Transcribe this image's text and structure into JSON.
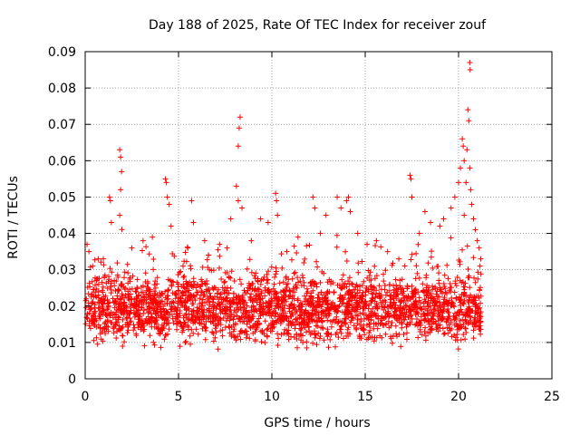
{
  "chart_data": {
    "type": "scatter",
    "title": "Day 188 of 2025, Rate Of TEC Index for receiver zouf",
    "xlabel": "GPS time / hours",
    "ylabel": "ROTI / TECUs",
    "xlim": [
      0,
      25
    ],
    "ylim": [
      0,
      0.09
    ],
    "x_ticks": [
      0,
      5,
      10,
      15,
      20,
      25
    ],
    "x_tick_labels": [
      "0",
      "5",
      "10",
      "15",
      "20",
      "25"
    ],
    "y_ticks": [
      0,
      0.01,
      0.02,
      0.03,
      0.04,
      0.05,
      0.06,
      0.07,
      0.08,
      0.09
    ],
    "y_tick_labels": [
      "0",
      "0.01",
      "0.02",
      "0.03",
      "0.04",
      "0.05",
      "0.06",
      "0.07",
      "0.08",
      "0.09"
    ],
    "grid": true,
    "marker": "+",
    "marker_color": "#ff0000",
    "series": [
      {
        "name": "ROTI",
        "x_range": [
          0,
          21.2
        ],
        "band_baseline_range": [
          0.007,
          0.028
        ],
        "band_median": 0.017,
        "points": [
          [
            0.1,
            0.037
          ],
          [
            0.2,
            0.035
          ],
          [
            0.4,
            0.031
          ],
          [
            0.7,
            0.033
          ],
          [
            1.3,
            0.05
          ],
          [
            1.35,
            0.049
          ],
          [
            1.4,
            0.043
          ],
          [
            1.85,
            0.063
          ],
          [
            1.9,
            0.061
          ],
          [
            1.95,
            0.057
          ],
          [
            1.9,
            0.052
          ],
          [
            1.85,
            0.045
          ],
          [
            2.5,
            0.036
          ],
          [
            3.1,
            0.038
          ],
          [
            3.6,
            0.039
          ],
          [
            4.3,
            0.055
          ],
          [
            4.35,
            0.054
          ],
          [
            4.4,
            0.05
          ],
          [
            4.5,
            0.048
          ],
          [
            4.6,
            0.042
          ],
          [
            5.5,
            0.036
          ],
          [
            5.7,
            0.049
          ],
          [
            5.8,
            0.043
          ],
          [
            6.4,
            0.038
          ],
          [
            6.6,
            0.034
          ],
          [
            7.2,
            0.037
          ],
          [
            7.6,
            0.036
          ],
          [
            7.8,
            0.044
          ],
          [
            8.1,
            0.053
          ],
          [
            8.2,
            0.049
          ],
          [
            8.3,
            0.072
          ],
          [
            8.25,
            0.069
          ],
          [
            8.2,
            0.064
          ],
          [
            8.4,
            0.047
          ],
          [
            8.9,
            0.038
          ],
          [
            9.4,
            0.044
          ],
          [
            9.8,
            0.043
          ],
          [
            10.2,
            0.051
          ],
          [
            10.25,
            0.049
          ],
          [
            10.3,
            0.045
          ],
          [
            10.8,
            0.035
          ],
          [
            11.4,
            0.039
          ],
          [
            12.2,
            0.05
          ],
          [
            12.3,
            0.047
          ],
          [
            12.6,
            0.04
          ],
          [
            12.9,
            0.045
          ],
          [
            13.5,
            0.05
          ],
          [
            13.7,
            0.047
          ],
          [
            14.0,
            0.049
          ],
          [
            14.1,
            0.05
          ],
          [
            14.2,
            0.046
          ],
          [
            14.6,
            0.04
          ],
          [
            15.1,
            0.037
          ],
          [
            15.6,
            0.038
          ],
          [
            16.2,
            0.035
          ],
          [
            16.8,
            0.033
          ],
          [
            17.4,
            0.056
          ],
          [
            17.45,
            0.055
          ],
          [
            17.5,
            0.05
          ],
          [
            17.9,
            0.04
          ],
          [
            18.2,
            0.046
          ],
          [
            18.5,
            0.043
          ],
          [
            19.0,
            0.042
          ],
          [
            19.2,
            0.044
          ],
          [
            19.6,
            0.047
          ],
          [
            19.8,
            0.05
          ],
          [
            20.0,
            0.054
          ],
          [
            20.1,
            0.058
          ],
          [
            20.2,
            0.066
          ],
          [
            20.25,
            0.064
          ],
          [
            20.3,
            0.06
          ],
          [
            20.3,
            0.045
          ],
          [
            20.4,
            0.054
          ],
          [
            20.45,
            0.063
          ],
          [
            20.5,
            0.074
          ],
          [
            20.55,
            0.071
          ],
          [
            20.6,
            0.058
          ],
          [
            20.65,
            0.052
          ],
          [
            20.7,
            0.048
          ],
          [
            20.8,
            0.044
          ],
          [
            20.9,
            0.041
          ],
          [
            21.0,
            0.038
          ],
          [
            21.1,
            0.036
          ],
          [
            21.15,
            0.031
          ],
          [
            20.6,
            0.087
          ],
          [
            20.62,
            0.085
          ]
        ]
      }
    ]
  }
}
